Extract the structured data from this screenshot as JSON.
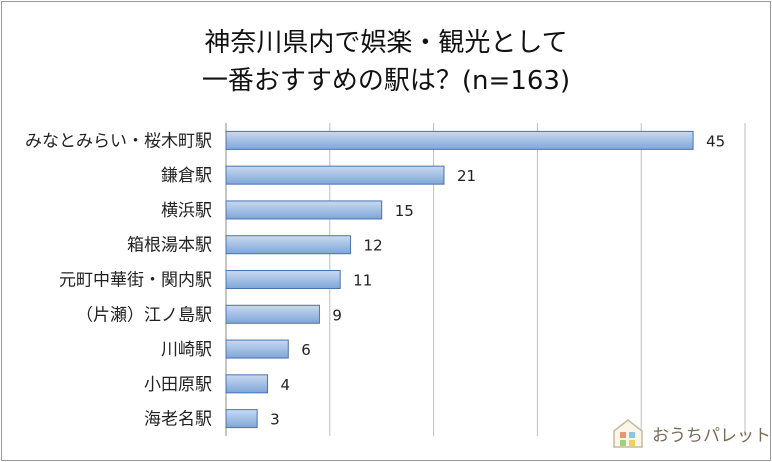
{
  "chart_data": {
    "type": "bar",
    "orientation": "horizontal",
    "title": [
      "神奈川県内で娯楽・観光として",
      "一番おすすめの駅は？(n=163)"
    ],
    "categories": [
      "みなとみらい・桜木町駅",
      "鎌倉駅",
      "横浜駅",
      "箱根湯本駅",
      "元町中華街・関内駅",
      "（片瀬）江ノ島駅",
      "川崎駅",
      "小田原駅",
      "海老名駅"
    ],
    "values": [
      45,
      21,
      15,
      12,
      11,
      9,
      6,
      4,
      3
    ],
    "xlim": [
      0,
      50
    ],
    "grid": true,
    "colors": {
      "bar_fill_top": "#c9daf0",
      "bar_fill_bottom": "#7fa6d8",
      "bar_stroke": "#4a72b0",
      "grid": "#bfbfbf"
    }
  },
  "logo": {
    "text": "おうちパレット",
    "icon": "house-icon"
  }
}
